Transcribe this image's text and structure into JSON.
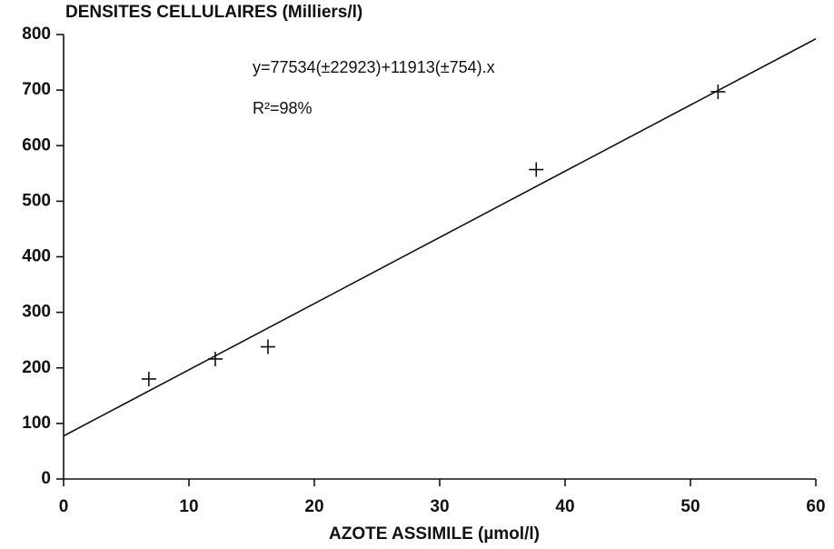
{
  "chart_data": {
    "type": "scatter",
    "title": "DENSITES CELLULAIRES (Milliers/l)",
    "x_label": "AZOTE ASSIMILE (µmol/l)",
    "annotations": [
      "y=77534(±22923)+11913(±754).x",
      "R²=98%"
    ],
    "x": [
      6.8,
      12.1,
      16.3,
      37.7,
      52.2
    ],
    "values": [
      180,
      216,
      238,
      557,
      697
    ],
    "color": "#000000",
    "fit": {
      "x": [
        0,
        60
      ],
      "values": [
        77.5,
        792.3
      ]
    },
    "xlim": [
      0,
      60
    ],
    "xticks": [
      0,
      10,
      20,
      30,
      40,
      50,
      60
    ],
    "ylim": [
      0,
      800
    ],
    "yticks": [
      0,
      100,
      200,
      300,
      400,
      500,
      600,
      700,
      800
    ],
    "grid": false
  }
}
